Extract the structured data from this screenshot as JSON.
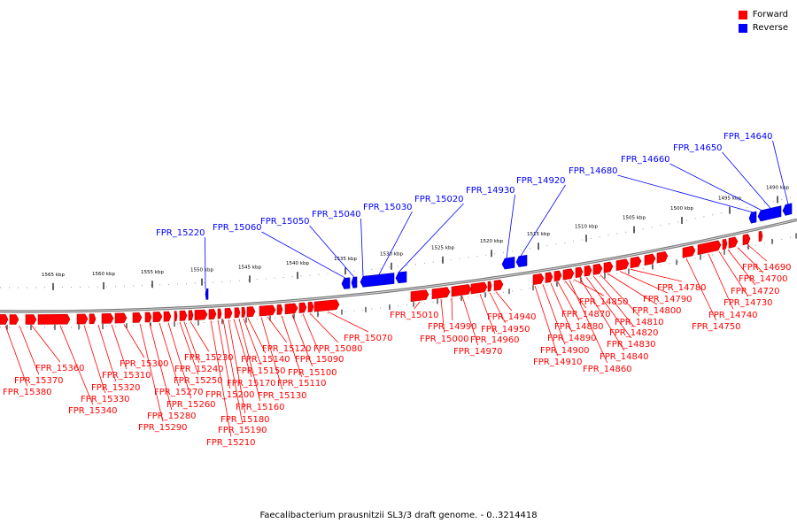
{
  "legend": {
    "forward_label": "Forward",
    "reverse_label": "Reverse",
    "forward_color": "#ff0000",
    "reverse_color": "#0000ff"
  },
  "caption": "Faecalibacterium prausnitzii SL3/3 draft genome. - 0..3214418",
  "scale_labels": [
    "1565 kbp",
    "1560 kbp",
    "1555 kbp",
    "1550 kbp",
    "1545 kbp",
    "1540 kbp",
    "1535 kbp",
    "1530 kbp",
    "1525 kbp",
    "1520 kbp",
    "1515 kbp",
    "1510 kbp",
    "1505 kbp",
    "1500 kbp",
    "1495 kbp",
    "1490 kbp"
  ],
  "genes": [
    {
      "label": "FPR_15380",
      "strand": "forward"
    },
    {
      "label": "FPR_15370",
      "strand": "forward"
    },
    {
      "label": "FPR_15360",
      "strand": "forward"
    },
    {
      "label": "FPR_15340",
      "strand": "forward"
    },
    {
      "label": "FPR_15330",
      "strand": "forward"
    },
    {
      "label": "FPR_15320",
      "strand": "forward"
    },
    {
      "label": "FPR_15310",
      "strand": "forward"
    },
    {
      "label": "FPR_15300",
      "strand": "forward"
    },
    {
      "label": "FPR_15290",
      "strand": "forward"
    },
    {
      "label": "FPR_15280",
      "strand": "forward"
    },
    {
      "label": "FPR_15270",
      "strand": "forward"
    },
    {
      "label": "FPR_15260",
      "strand": "forward"
    },
    {
      "label": "FPR_15250",
      "strand": "forward"
    },
    {
      "label": "FPR_15240",
      "strand": "forward"
    },
    {
      "label": "FPR_15230",
      "strand": "forward"
    },
    {
      "label": "FPR_15220",
      "strand": "reverse"
    },
    {
      "label": "FPR_15210",
      "strand": "forward"
    },
    {
      "label": "FPR_15200",
      "strand": "forward"
    },
    {
      "label": "FPR_15190",
      "strand": "forward"
    },
    {
      "label": "FPR_15180",
      "strand": "forward"
    },
    {
      "label": "FPR_15170",
      "strand": "forward"
    },
    {
      "label": "FPR_15160",
      "strand": "forward"
    },
    {
      "label": "FPR_15150",
      "strand": "forward"
    },
    {
      "label": "FPR_15140",
      "strand": "forward"
    },
    {
      "label": "FPR_15130",
      "strand": "forward"
    },
    {
      "label": "FPR_15120",
      "strand": "forward"
    },
    {
      "label": "FPR_15110",
      "strand": "forward"
    },
    {
      "label": "FPR_15100",
      "strand": "forward"
    },
    {
      "label": "FPR_15090",
      "strand": "forward"
    },
    {
      "label": "FPR_15080",
      "strand": "forward"
    },
    {
      "label": "FPR_15070",
      "strand": "forward"
    },
    {
      "label": "FPR_15060",
      "strand": "reverse"
    },
    {
      "label": "FPR_15050",
      "strand": "reverse"
    },
    {
      "label": "FPR_15040",
      "strand": "reverse"
    },
    {
      "label": "FPR_15030",
      "strand": "reverse"
    },
    {
      "label": "FPR_15020",
      "strand": "reverse"
    },
    {
      "label": "FPR_15010",
      "strand": "forward"
    },
    {
      "label": "FPR_15000",
      "strand": "forward"
    },
    {
      "label": "FPR_14990",
      "strand": "forward"
    },
    {
      "label": "FPR_14970",
      "strand": "forward"
    },
    {
      "label": "FPR_14960",
      "strand": "forward"
    },
    {
      "label": "FPR_14950",
      "strand": "forward"
    },
    {
      "label": "FPR_14940",
      "strand": "forward"
    },
    {
      "label": "FPR_14930",
      "strand": "reverse"
    },
    {
      "label": "FPR_14920",
      "strand": "reverse"
    },
    {
      "label": "FPR_14910",
      "strand": "forward"
    },
    {
      "label": "FPR_14900",
      "strand": "forward"
    },
    {
      "label": "FPR_14890",
      "strand": "forward"
    },
    {
      "label": "FPR_14880",
      "strand": "forward"
    },
    {
      "label": "FPR_14870",
      "strand": "forward"
    },
    {
      "label": "FPR_14860",
      "strand": "forward"
    },
    {
      "label": "FPR_14850",
      "strand": "forward"
    },
    {
      "label": "FPR_14840",
      "strand": "forward"
    },
    {
      "label": "FPR_14830",
      "strand": "forward"
    },
    {
      "label": "FPR_14820",
      "strand": "forward"
    },
    {
      "label": "FPR_14810",
      "strand": "forward"
    },
    {
      "label": "FPR_14800",
      "strand": "forward"
    },
    {
      "label": "FPR_14790",
      "strand": "forward"
    },
    {
      "label": "FPR_14780",
      "strand": "forward"
    },
    {
      "label": "FPR_14750",
      "strand": "forward"
    },
    {
      "label": "FPR_14740",
      "strand": "forward"
    },
    {
      "label": "FPR_14730",
      "strand": "forward"
    },
    {
      "label": "FPR_14720",
      "strand": "forward"
    },
    {
      "label": "FPR_14700",
      "strand": "forward"
    },
    {
      "label": "FPR_14690",
      "strand": "forward"
    },
    {
      "label": "FPR_14680",
      "strand": "reverse"
    },
    {
      "label": "FPR_14660",
      "strand": "reverse"
    },
    {
      "label": "FPR_14650",
      "strand": "reverse"
    },
    {
      "label": "FPR_14640",
      "strand": "reverse"
    }
  ]
}
